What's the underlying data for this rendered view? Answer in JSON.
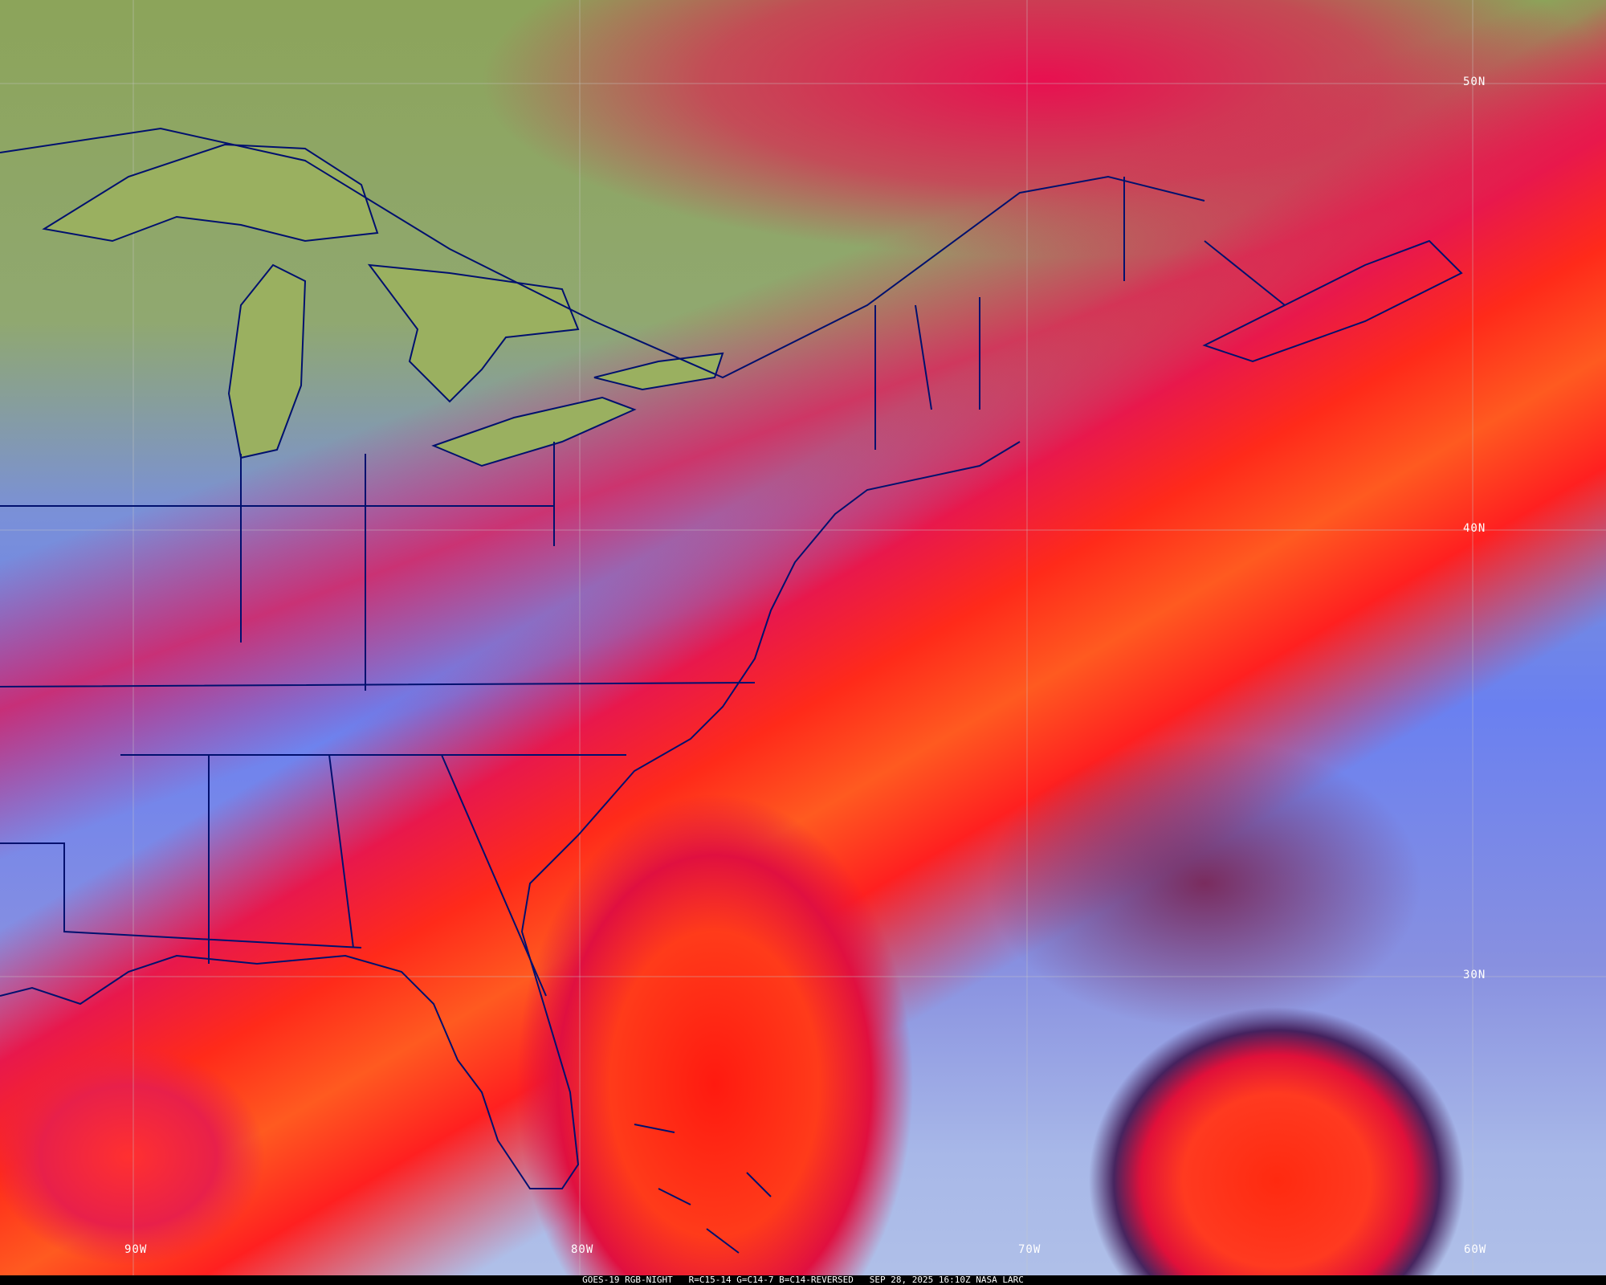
{
  "caption": {
    "satellite": "GOES-19 RGB-NIGHT",
    "channels": "R=C15-14 G=C14-7 B=C14-REVERSED",
    "timestamp": "SEP 28, 2025 16:10Z",
    "source": "NASA LARC"
  },
  "grid_labels": {
    "lat": [
      "50N",
      "40N",
      "30N"
    ],
    "lon": [
      "90W",
      "80W",
      "70W",
      "60W"
    ]
  },
  "colors": {
    "boundaries": "#00106e",
    "grid": "#c8c8c8",
    "caption_bg": "#000000"
  }
}
